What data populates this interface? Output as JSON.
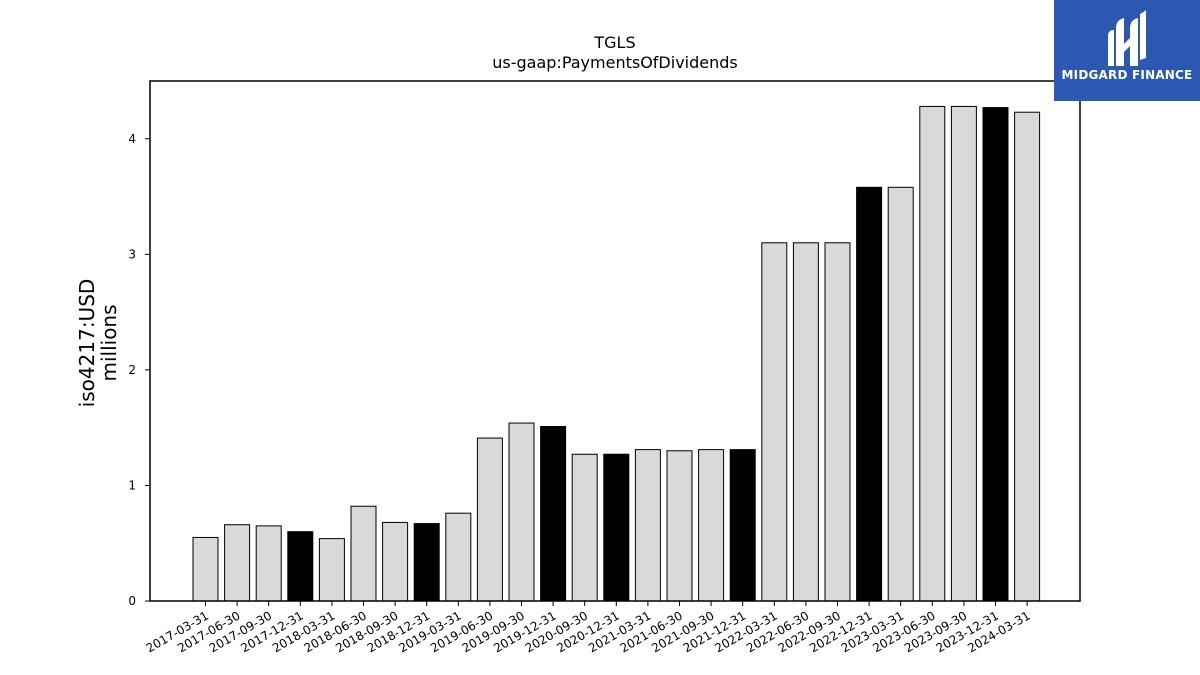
{
  "logo": {
    "text": "MIDGARD FINANCE",
    "color": "#2b58b0"
  },
  "chart_data": {
    "type": "bar",
    "title": "TGLS",
    "subtitle": "us-gaap:PaymentsOfDividends",
    "ylabel_line1": "iso4217:USD",
    "ylabel_line2": "millions",
    "xlabel": "",
    "ylim": [
      0,
      4.5
    ],
    "yticks": [
      0,
      1,
      2,
      3,
      4
    ],
    "grid": false,
    "categories": [
      "2017-03-31",
      "2017-06-30",
      "2017-09-30",
      "2017-12-31",
      "2018-03-31",
      "2018-06-30",
      "2018-09-30",
      "2018-12-31",
      "2019-03-31",
      "2019-06-30",
      "2019-09-30",
      "2019-12-31",
      "2020-09-30",
      "2020-12-31",
      "2021-03-31",
      "2021-06-30",
      "2021-09-30",
      "2021-12-31",
      "2022-03-31",
      "2022-06-30",
      "2022-09-30",
      "2022-12-31",
      "2023-03-31",
      "2023-06-30",
      "2023-09-30",
      "2023-12-31",
      "2024-03-31"
    ],
    "values": [
      0.55,
      0.66,
      0.65,
      0.6,
      0.54,
      0.82,
      0.68,
      0.67,
      0.76,
      1.41,
      1.54,
      1.51,
      1.27,
      1.27,
      1.31,
      1.3,
      1.31,
      1.31,
      3.1,
      3.1,
      3.1,
      3.58,
      3.58,
      4.28,
      4.28,
      4.27,
      4.23
    ],
    "highlighted": [
      false,
      false,
      false,
      true,
      false,
      false,
      false,
      true,
      false,
      false,
      false,
      true,
      false,
      true,
      false,
      false,
      false,
      true,
      false,
      false,
      false,
      true,
      false,
      false,
      false,
      true,
      false
    ],
    "colors": {
      "bar": "#d9d9d9",
      "bar_highlight": "#000000",
      "edge": "#000000"
    }
  }
}
